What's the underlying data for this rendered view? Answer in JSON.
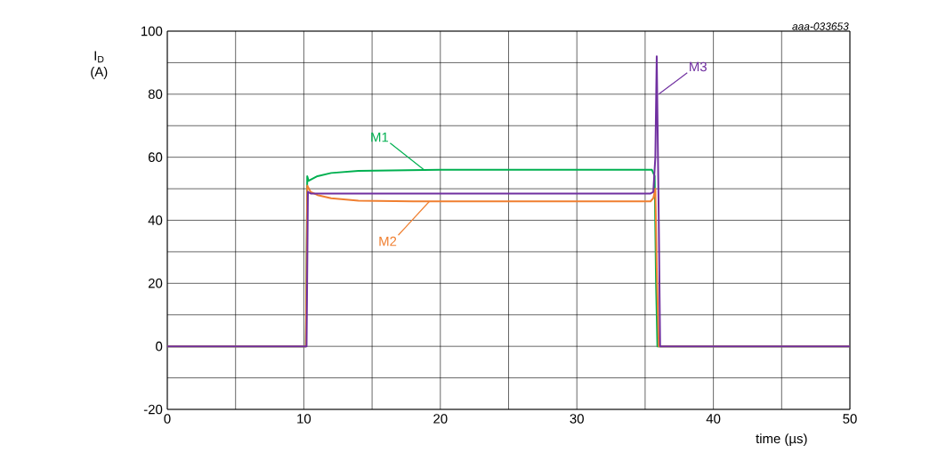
{
  "chart_data": {
    "type": "line",
    "xlabel": "time (µs)",
    "ylabel": "I$_{D}$ (A)",
    "xlim": [
      0,
      50
    ],
    "ylim": [
      -20,
      100
    ],
    "xticks": [
      0,
      {
        "value": 5,
        "label": null
      },
      10,
      {
        "value": 15,
        "label": null
      },
      20,
      {
        "value": 25,
        "label": null
      },
      30,
      {
        "value": 35,
        "label": null
      },
      40,
      {
        "value": 45,
        "label": null
      },
      50
    ],
    "yticks": [
      -20,
      {
        "value": -10,
        "label": null
      },
      0,
      {
        "value": 10,
        "label": null
      },
      20,
      {
        "value": 30,
        "label": null
      },
      40,
      {
        "value": 50,
        "label": null
      },
      60,
      {
        "value": 70,
        "label": null
      },
      80,
      {
        "value": 90,
        "label": null
      },
      100
    ],
    "grid": true,
    "legend": false,
    "marker": "none",
    "line_style": "solid",
    "series": [
      {
        "color": "#00b050",
        "x": [
          0,
          10.15,
          10.25,
          10.35,
          11,
          12,
          14,
          20,
          35.5,
          35.7,
          35.8,
          35.9,
          50
        ],
        "values": [
          0,
          0,
          54,
          52.5,
          54,
          55,
          55.7,
          56,
          56,
          54,
          20,
          0,
          0
        ]
      },
      {
        "color": "#f07f30",
        "x": [
          0,
          10.15,
          10.25,
          10.5,
          11,
          12,
          14,
          18,
          35.4,
          35.6,
          35.75,
          35.85,
          36,
          50
        ],
        "values": [
          0,
          0,
          51,
          49,
          48,
          47,
          46.2,
          46,
          46,
          47,
          50,
          25,
          0,
          0
        ]
      },
      {
        "color": "#7030a0",
        "x": [
          0,
          10.2,
          10.3,
          10.5,
          35.4,
          35.6,
          35.75,
          35.85,
          36.0,
          36.1,
          50
        ],
        "values": [
          0,
          0,
          49,
          48.5,
          48.5,
          49,
          60,
          92,
          40,
          0,
          0
        ]
      }
    ],
    "annotations": [
      {
        "text": "M1",
        "x": 18.8,
        "y": 56
      },
      {
        "text": "M2",
        "x": 19.2,
        "y": 46
      },
      {
        "text": "M3",
        "x": 36.0,
        "y": 80
      },
      "aaa-033653"
    ]
  }
}
